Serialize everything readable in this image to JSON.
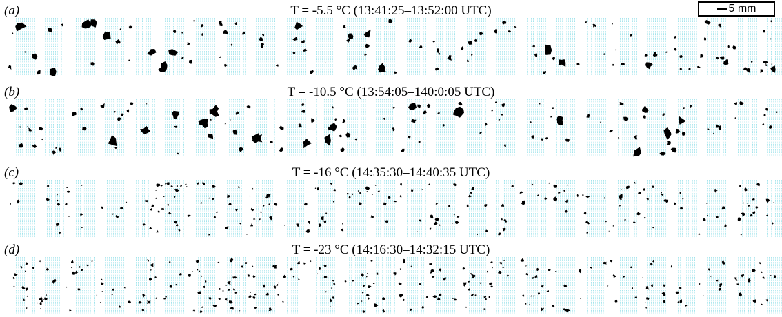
{
  "scale_bar": {
    "label": "5 mm"
  },
  "panels": [
    {
      "letter": "(a)",
      "title": "T = -5.5 °C (13:41:25–13:52:00 UTC)",
      "particle_size": "large",
      "particle_count": 120
    },
    {
      "letter": "(b)",
      "title": "T = -10.5 °C (13:54:05–140:0:05 UTC)",
      "particle_size": "large",
      "particle_count": 125
    },
    {
      "letter": "(c)",
      "title": "T = -16 °C (14:35:30–14:40:35 UTC)",
      "particle_size": "small",
      "particle_count": 220
    },
    {
      "letter": "(d)",
      "title": "T = -23 °C (14:16:30–14:32:15 UTC)",
      "particle_size": "small",
      "particle_count": 270
    }
  ],
  "colors": {
    "stripe": "#9fe4ec",
    "particle": "#000000",
    "background": "#ffffff"
  }
}
